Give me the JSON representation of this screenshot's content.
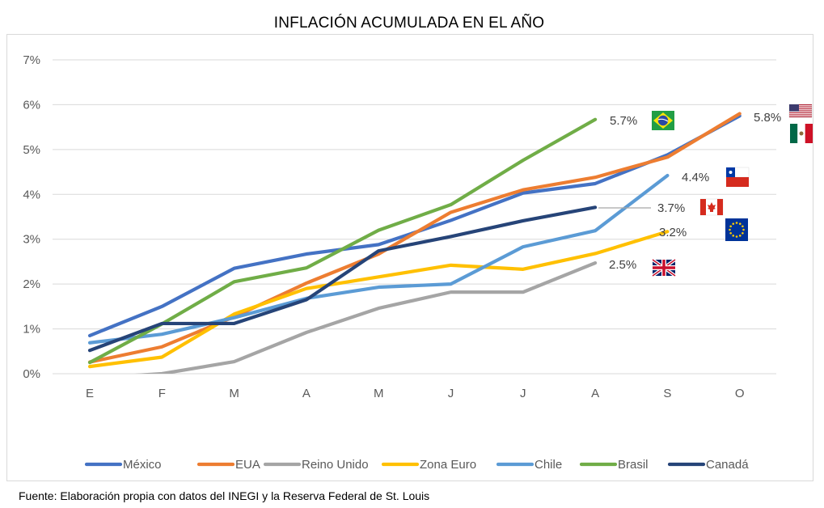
{
  "chart_data": {
    "type": "line",
    "title": "INFLACIÓN ACUMULADA EN EL AÑO",
    "categories": [
      "E",
      "F",
      "M",
      "A",
      "M",
      "J",
      "J",
      "A",
      "S",
      "O"
    ],
    "y_ticks": [
      "0%",
      "1%",
      "2%",
      "3%",
      "4%",
      "5%",
      "6%",
      "7%"
    ],
    "ylim": [
      0,
      7
    ],
    "grid": true,
    "legend_position": "bottom",
    "series": [
      {
        "name": "México",
        "color": "#4472c4",
        "values": [
          0.85,
          1.5,
          2.35,
          2.67,
          2.88,
          3.42,
          4.03,
          4.24,
          4.88,
          5.75
        ]
      },
      {
        "name": "EUA",
        "color": "#ed7d31",
        "values": [
          0.26,
          0.6,
          1.27,
          2.02,
          2.67,
          3.6,
          4.1,
          4.38,
          4.83,
          5.8
        ]
      },
      {
        "name": "Reino Unido",
        "color": "#a5a5a5",
        "values": [
          -0.1,
          0.0,
          0.27,
          0.92,
          1.46,
          1.82,
          1.82,
          2.47,
          null,
          null
        ]
      },
      {
        "name": "Zona Euro",
        "color": "#ffc000",
        "values": [
          0.16,
          0.37,
          1.33,
          1.9,
          2.16,
          2.42,
          2.33,
          2.68,
          3.17,
          null
        ]
      },
      {
        "name": "Chile",
        "color": "#5b9bd5",
        "values": [
          0.69,
          0.88,
          1.25,
          1.68,
          1.93,
          2.0,
          2.83,
          3.19,
          4.42,
          null
        ]
      },
      {
        "name": "Brasil",
        "color": "#70ad47",
        "values": [
          0.25,
          1.11,
          2.05,
          2.36,
          3.2,
          3.77,
          4.76,
          5.67,
          null,
          null
        ]
      },
      {
        "name": "Canadá",
        "color": "#264478",
        "values": [
          0.52,
          1.12,
          1.12,
          1.65,
          2.74,
          3.06,
          3.41,
          3.71,
          null,
          null
        ]
      }
    ],
    "annotations": [
      {
        "series": "Brasil",
        "text": "5.7%",
        "flag": "brazil-flag-icon"
      },
      {
        "series": "EUA",
        "text": "5.8%",
        "flag": "usa-flag-icon"
      },
      {
        "series": "México",
        "text": "",
        "flag": "mexico-flag-icon"
      },
      {
        "series": "Chile",
        "text": "4.4%",
        "flag": "chile-flag-icon"
      },
      {
        "series": "Canadá",
        "text": "3.7%",
        "flag": "canada-flag-icon"
      },
      {
        "series": "Zona Euro",
        "text": "3.2%",
        "flag": "eu-flag-icon"
      },
      {
        "series": "Reino Unido",
        "text": "2.5%",
        "flag": "uk-flag-icon"
      }
    ]
  },
  "source_note": "Fuente: Elaboración propia con datos del INEGI y la Reserva Federal de St. Louis"
}
